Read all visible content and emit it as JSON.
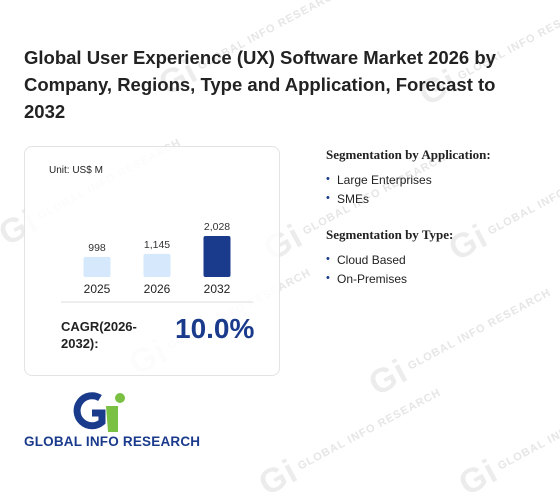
{
  "title": "Global User Experience (UX) Software Market 2026 by Company, Regions, Type and Application, Forecast to 2032",
  "chart_data": {
    "type": "bar",
    "unit_label": "Unit: US$ M",
    "categories": [
      "2025",
      "2026",
      "2032"
    ],
    "values": [
      998,
      1145,
      2028
    ],
    "value_labels": [
      "998",
      "1,145",
      "2,028"
    ],
    "bar_colors": [
      "#d6e8fb",
      "#d6e8fb",
      "#1a3a8c"
    ],
    "ylim": [
      0,
      2028
    ]
  },
  "cagr": {
    "label": "CAGR(2026-2032):",
    "value": "10.0%"
  },
  "segmentation_application": {
    "heading": "Segmentation by Application:",
    "items": [
      "Large Enterprises",
      "SMEs"
    ]
  },
  "segmentation_type": {
    "heading": "Segmentation by Type:",
    "items": [
      "Cloud Based",
      "On-Premises"
    ]
  },
  "logo": {
    "text": "GLOBAL INFO RESEARCH"
  },
  "watermark": {
    "text": "GLOBAL INFO RESEARCH"
  },
  "colors": {
    "accent": "#1a3a8c",
    "light_bar": "#d6e8fb",
    "logo_green": "#7ac143"
  }
}
